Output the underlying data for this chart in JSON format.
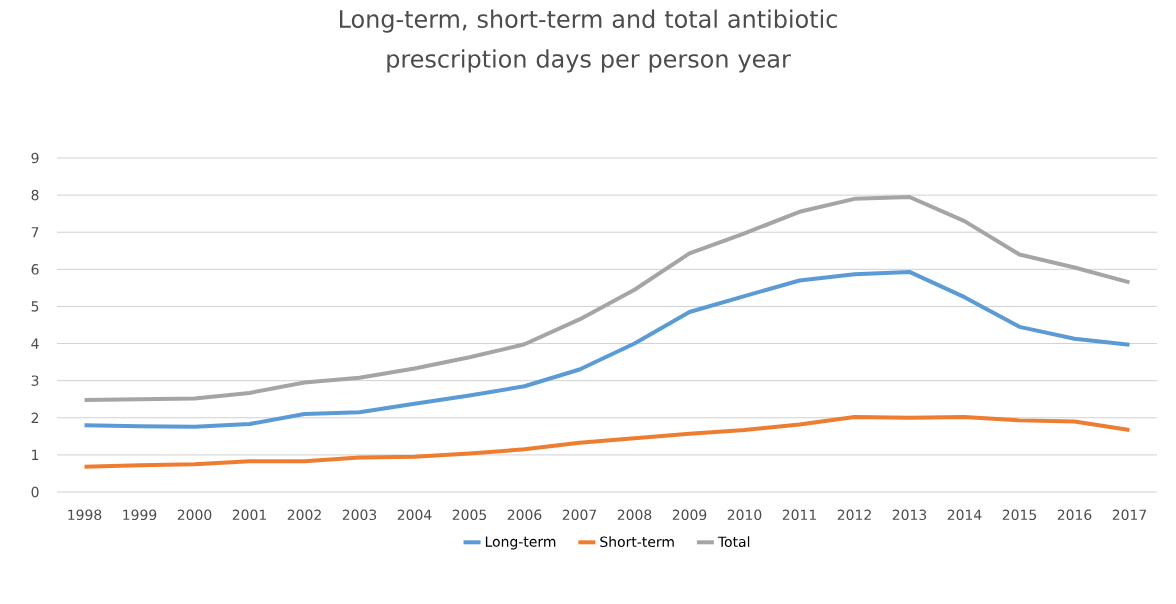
{
  "chart_data": {
    "type": "line",
    "title": "Long-term, short-term and total antibiotic prescription days per person year",
    "categories": [
      "1998",
      "1999",
      "2000",
      "2001",
      "2002",
      "2003",
      "2004",
      "2005",
      "2006",
      "2007",
      "2008",
      "2009",
      "2010",
      "2011",
      "2012",
      "2013",
      "2014",
      "2015",
      "2016",
      "2017"
    ],
    "series": [
      {
        "name": "Long-term",
        "color": "#5b9bd5",
        "values": [
          1.8,
          1.77,
          1.76,
          1.83,
          2.1,
          2.15,
          2.38,
          2.6,
          2.85,
          3.3,
          4.0,
          4.85,
          5.28,
          5.7,
          5.87,
          5.93,
          5.25,
          4.45,
          4.13,
          3.97
        ]
      },
      {
        "name": "Short-term",
        "color": "#ed7d31",
        "values": [
          0.68,
          0.72,
          0.75,
          0.83,
          0.83,
          0.93,
          0.95,
          1.04,
          1.15,
          1.33,
          1.45,
          1.57,
          1.67,
          1.82,
          2.02,
          2.0,
          2.02,
          1.93,
          1.9,
          1.67
        ]
      },
      {
        "name": "Total",
        "color": "#a5a5a5",
        "values": [
          2.48,
          2.5,
          2.52,
          2.67,
          2.95,
          3.08,
          3.33,
          3.63,
          3.98,
          4.65,
          5.45,
          6.43,
          6.97,
          7.55,
          7.9,
          7.95,
          7.3,
          6.4,
          6.05,
          5.65
        ]
      }
    ],
    "ylim": [
      0,
      9
    ],
    "yticks": [
      0,
      1,
      2,
      3,
      4,
      5,
      6,
      7,
      8,
      9
    ],
    "grid": "y",
    "legend": "bottom",
    "marker": "none",
    "line_style": "solid"
  }
}
